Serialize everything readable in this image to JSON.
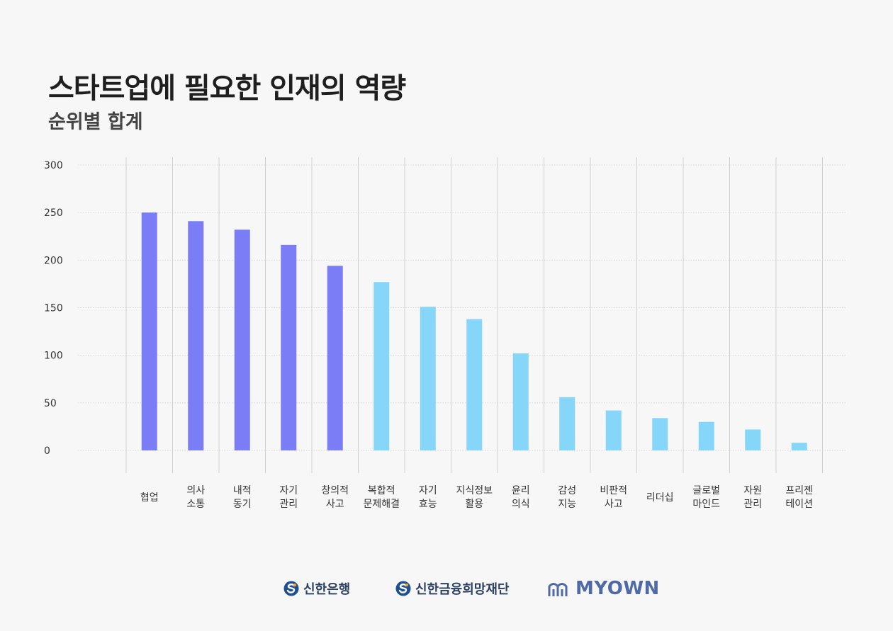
{
  "title": "스타트업에 필요한 인재의 역량",
  "subtitle": "순위별 합계",
  "chart_data": {
    "type": "bar",
    "title": "스타트업에 필요한 인재의 역량",
    "subtitle": "순위별 합계",
    "xlabel": "",
    "ylabel": "",
    "ylim": [
      0,
      300
    ],
    "yticks": [
      0,
      50,
      100,
      150,
      200,
      250,
      300
    ],
    "grid": true,
    "categories": [
      [
        "협업"
      ],
      [
        "의사",
        "소통"
      ],
      [
        "내적",
        "동기"
      ],
      [
        "자기",
        "관리"
      ],
      [
        "창의적",
        "사고"
      ],
      [
        "복합적",
        "문제해결"
      ],
      [
        "자기",
        "효능"
      ],
      [
        "지식정보",
        "활용"
      ],
      [
        "윤리",
        "의식"
      ],
      [
        "감성",
        "지능"
      ],
      [
        "비판적",
        "사고"
      ],
      [
        "리더십"
      ],
      [
        "글로벌",
        "마인드"
      ],
      [
        "자원",
        "관리"
      ],
      [
        "프리젠",
        "테이션"
      ]
    ],
    "values": [
      250,
      241,
      232,
      216,
      194,
      177,
      151,
      138,
      102,
      56,
      42,
      34,
      30,
      22,
      8
    ],
    "colors": {
      "top5": "#7b7df6",
      "rest": "#86d6fa"
    },
    "highlight_count": 5
  },
  "footer": {
    "logos": [
      {
        "name": "shinhan-bank-logo",
        "label": "신한은행"
      },
      {
        "name": "shinhan-hope-foundation-logo",
        "label": "신한금융희망재단"
      },
      {
        "name": "myown-logo",
        "label": "MYOWN"
      }
    ]
  }
}
